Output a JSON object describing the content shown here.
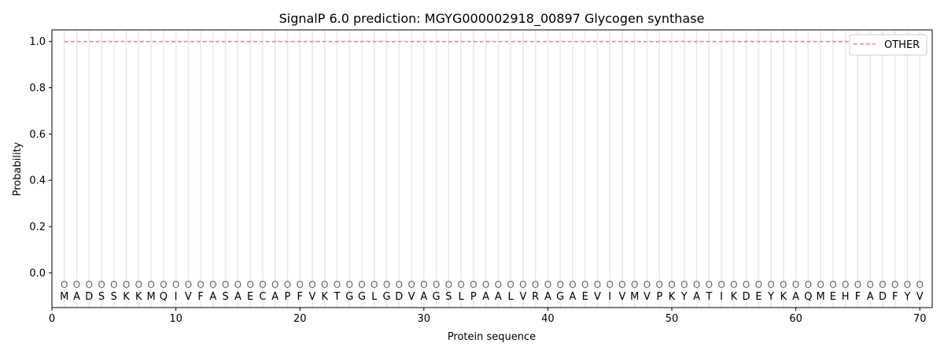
{
  "chart_data": {
    "type": "line",
    "title": "SignalP 6.0 prediction: MGYG000002918_00897 Glycogen synthase",
    "xlabel": "Protein sequence",
    "ylabel": "Probability",
    "xlim": [
      0,
      71
    ],
    "ylim": [
      -0.15,
      1.05
    ],
    "xticks": [
      0,
      10,
      20,
      30,
      40,
      50,
      60,
      70
    ],
    "yticks": [
      0.0,
      0.2,
      0.4,
      0.6,
      0.8,
      1.0
    ],
    "ytick_labels": [
      "0.0",
      "0.2",
      "0.4",
      "0.6",
      "0.8",
      "1.0"
    ],
    "sequence": [
      "M",
      "A",
      "D",
      "S",
      "S",
      "K",
      "K",
      "M",
      "Q",
      "I",
      "V",
      "F",
      "A",
      "S",
      "A",
      "E",
      "C",
      "A",
      "P",
      "F",
      "V",
      "K",
      "T",
      "G",
      "G",
      "L",
      "G",
      "D",
      "V",
      "A",
      "G",
      "S",
      "L",
      "P",
      "A",
      "A",
      "L",
      "V",
      "R",
      "A",
      "G",
      "A",
      "E",
      "V",
      "I",
      "V",
      "M",
      "V",
      "P",
      "K",
      "Y",
      "A",
      "T",
      "I",
      "K",
      "D",
      "E",
      "Y",
      "K",
      "A",
      "Q",
      "M",
      "E",
      "H",
      "F",
      "A",
      "D",
      "F",
      "Y",
      "V"
    ],
    "predicted_labels": "OOOOOOOOOOOOOOOOOOOOOOOOOOOOOOOOOOOOOOOOOOOOOOOOOOOOOOOOOOOOOOOOOOOOOO",
    "series": [
      {
        "name": "OTHER",
        "color": "#f08080",
        "style": "dashed",
        "x_range": [
          1,
          70
        ],
        "value": 1.0
      }
    ],
    "legend": {
      "position": "top-right",
      "entries": [
        "OTHER"
      ]
    },
    "grid": false
  }
}
